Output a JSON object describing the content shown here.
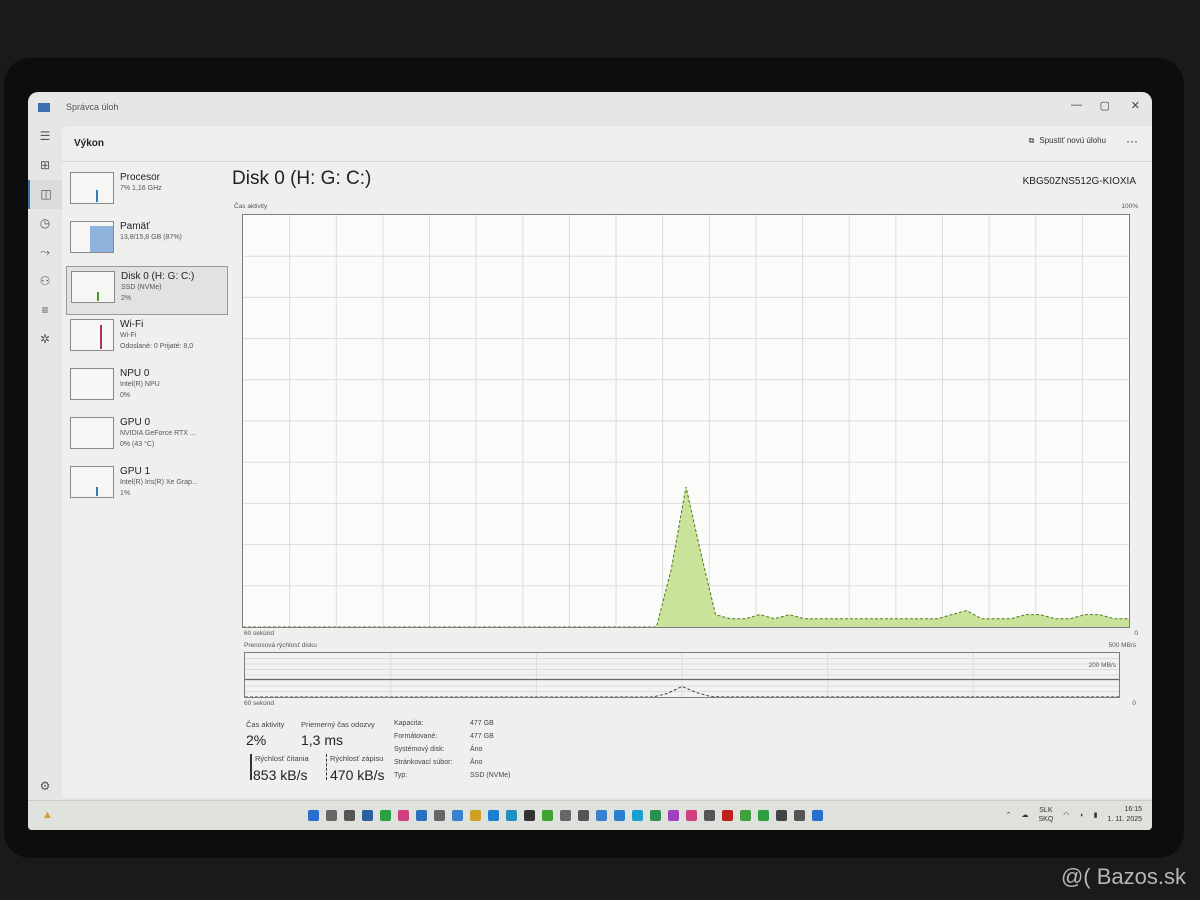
{
  "window": {
    "title": "Správca úloh",
    "minimize": "—",
    "maximize": "▢",
    "close": "✕"
  },
  "rail": [
    "menu-icon",
    "processes-icon",
    "performance-icon",
    "history-icon",
    "startup-icon",
    "users-icon",
    "details-icon",
    "services-icon"
  ],
  "header": {
    "title": "Výkon",
    "run_task": "Spustiť novú úlohu",
    "more": "···"
  },
  "devices": [
    {
      "name": "Procesor",
      "sub1": "7% 1,16 GHz",
      "sub2": "",
      "color": "#2f7fb8"
    },
    {
      "name": "Pamäť",
      "sub1": "13,8/15,8 GB (87%)",
      "sub2": "",
      "color": "#8fb3dc"
    },
    {
      "name": "Disk 0 (H: G: C:)",
      "sub1": "SSD (NVMe)",
      "sub2": "2%",
      "color": "#4d9a1c",
      "selected": true
    },
    {
      "name": "Wi-Fi",
      "sub1": "Wi-Fi",
      "sub2": "Odoslané: 0 Prijaté: 8,0",
      "color": "#b0306a"
    },
    {
      "name": "NPU 0",
      "sub1": "Intel(R) NPU",
      "sub2": "0%",
      "color": "#2f7fb8"
    },
    {
      "name": "GPU 0",
      "sub1": "NVIDIA GeForce RTX ...",
      "sub2": "0% (43 °C)",
      "color": "#2f7fb8"
    },
    {
      "name": "GPU 1",
      "sub1": "Intel(R) Iris(R) Xe Grap...",
      "sub2": "1%",
      "color": "#2f7fb8"
    }
  ],
  "main": {
    "title": "Disk 0 (H: G: C:)",
    "model": "KBG50ZNS512G-KIOXIA",
    "activity_label": "Čas aktivity",
    "activity_max": "100%",
    "activity_min": "0",
    "time_label": "60 sekúnd",
    "transfer_label": "Prenosová rýchlosť disku",
    "transfer_max": "500 MB/s",
    "transfer_mid": "200 MB/s",
    "transfer_min": "0",
    "time_label2": "60 sekúnd"
  },
  "chart_data": {
    "type": "area",
    "xlabel": "60 sekúnd",
    "ylabel": "Čas aktivity",
    "ylim": [
      0,
      100
    ],
    "xlim": [
      60,
      0
    ],
    "activity": [
      0,
      0,
      0,
      0,
      0,
      0,
      0,
      0,
      0,
      0,
      0,
      0,
      0,
      0,
      0,
      0,
      0,
      0,
      0,
      0,
      0,
      0,
      0,
      0,
      0,
      0,
      0,
      0,
      0,
      14,
      34,
      18,
      3,
      2,
      2,
      3,
      2,
      3,
      2,
      2,
      2,
      2,
      2,
      2,
      2,
      2,
      2,
      2,
      3,
      4,
      2,
      2,
      2,
      3,
      3,
      2,
      2,
      3,
      3,
      2,
      2
    ],
    "transfer_ylim": [
      0,
      500
    ],
    "transfer": [
      0,
      0,
      0,
      0,
      0,
      0,
      0,
      0,
      0,
      0,
      0,
      0,
      0,
      0,
      0,
      0,
      0,
      0,
      0,
      0,
      0,
      0,
      0,
      0,
      0,
      0,
      0,
      0,
      0,
      40,
      120,
      50,
      4,
      1,
      1,
      1,
      1,
      1,
      1,
      1,
      1,
      1,
      1,
      1,
      1,
      1,
      1,
      1,
      1,
      1,
      1,
      1,
      1,
      1,
      1,
      1,
      1,
      1,
      1,
      1,
      1
    ],
    "fill": "#c9e39a",
    "line": "#4d7a1c"
  },
  "stats": {
    "activity_label": "Čas aktivity",
    "activity": "2%",
    "response_label": "Priemerný čas odozvy",
    "response": "1,3 ms",
    "read_label": "Rýchlosť čítania",
    "read": "853 kB/s",
    "write_label": "Rýchlosť zápisu",
    "write": "470 kB/s",
    "props": [
      [
        "Kapacita:",
        "477 GB"
      ],
      [
        "Formátované:",
        "477 GB"
      ],
      [
        "Systémový disk:",
        "Áno"
      ],
      [
        "Stránkovací súbor:",
        "Áno"
      ],
      [
        "Typ:",
        "SSD (NVMe)"
      ]
    ]
  },
  "taskbar": {
    "icons": [
      "#2a6fd0",
      "#666",
      "#555",
      "#2a5fa0",
      "#2aa040",
      "#d04080",
      "#2a70c0",
      "#666",
      "#3a7fd0",
      "#d0a020",
      "#1a7fd0",
      "#2090c0",
      "#333",
      "#40a030",
      "#666",
      "#555",
      "#3a7fd0",
      "#2a80d0",
      "#1a9fd0",
      "#2a9050",
      "#a040c0",
      "#d04080",
      "#555",
      "#c02020",
      "#40a040",
      "#2aa040",
      "#444",
      "#555",
      "#2a6fd0"
    ],
    "lang1": "SLK",
    "lang2": "SKQ",
    "time": "16:15",
    "date": "1. 11. 2025"
  },
  "watermark": "@( Bazos.sk"
}
